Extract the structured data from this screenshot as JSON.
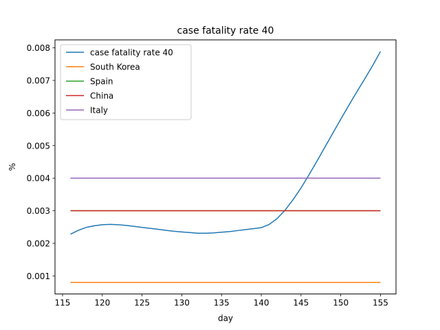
{
  "chart_data": {
    "type": "line",
    "title": "case fatality rate 40",
    "xlabel": "day",
    "ylabel": "%",
    "xlim": [
      114.05,
      156.95
    ],
    "ylim": [
      0.000445,
      0.008245
    ],
    "xticks": [
      115,
      120,
      125,
      130,
      135,
      140,
      145,
      150,
      155
    ],
    "yticks": [
      0.001,
      0.002,
      0.003,
      0.004,
      0.005,
      0.006,
      0.007,
      0.008
    ],
    "ytick_labels": [
      "0.001",
      "0.002",
      "0.003",
      "0.004",
      "0.005",
      "0.006",
      "0.007",
      "0.008"
    ],
    "grid": false,
    "legend": "top-left",
    "series": [
      {
        "name": "case fatality rate 40",
        "color": "#1f77b4",
        "x": [
          116,
          117,
          118,
          119,
          120,
          121,
          122,
          123,
          124,
          125,
          126,
          127,
          128,
          129,
          130,
          131,
          132,
          133,
          134,
          135,
          136,
          137,
          138,
          139,
          140,
          141,
          142,
          143,
          144,
          145,
          146,
          147,
          148,
          149,
          150,
          151,
          152,
          153,
          154,
          155
        ],
        "y": [
          0.00228,
          0.0024,
          0.00249,
          0.00254,
          0.00257,
          0.00258,
          0.00257,
          0.00255,
          0.00252,
          0.00249,
          0.00246,
          0.00243,
          0.0024,
          0.00237,
          0.00235,
          0.00233,
          0.00231,
          0.00231,
          0.00232,
          0.00234,
          0.00236,
          0.00239,
          0.00242,
          0.00245,
          0.00248,
          0.00258,
          0.00276,
          0.00302,
          0.00334,
          0.0037,
          0.0041,
          0.00452,
          0.00495,
          0.00538,
          0.00581,
          0.00623,
          0.00664,
          0.00704,
          0.00745,
          0.00789
        ]
      },
      {
        "name": "South Korea",
        "color": "#ff7f0e",
        "x": [
          116,
          155
        ],
        "y": [
          0.0008,
          0.0008
        ]
      },
      {
        "name": "Spain",
        "color": "#2ca02c",
        "x": [
          116,
          155
        ],
        "y": [
          0.003,
          0.003
        ]
      },
      {
        "name": "China",
        "color": "#d62728",
        "x": [
          116,
          155
        ],
        "y": [
          0.003,
          0.003
        ]
      },
      {
        "name": "Italy",
        "color": "#9467bd",
        "x": [
          116,
          155
        ],
        "y": [
          0.004,
          0.004
        ]
      }
    ]
  }
}
